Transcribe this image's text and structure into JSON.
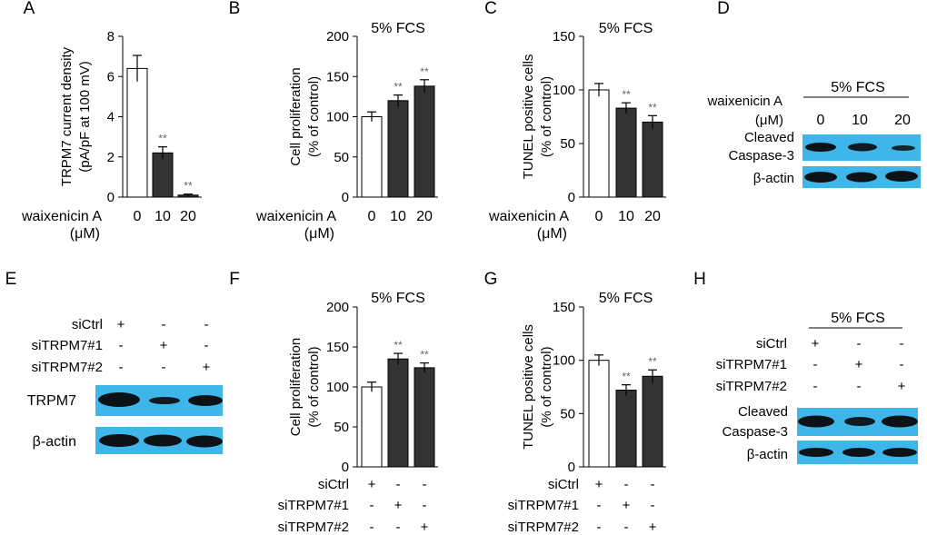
{
  "panels": {
    "A": {
      "label": "A"
    },
    "B": {
      "label": "B",
      "condition": "5% FCS"
    },
    "C": {
      "label": "C",
      "condition": "5% FCS"
    },
    "D": {
      "label": "D",
      "condition": "5% FCS",
      "treatment_label": "waixenicin A",
      "unit_label": "(μM)",
      "doses": [
        "0",
        "10",
        "20"
      ],
      "bands": [
        {
          "label": "Cleaved\nCaspase-3"
        },
        {
          "label": "β-actin"
        }
      ]
    },
    "E": {
      "label": "E",
      "rows": [
        {
          "name": "siCtrl",
          "marks": [
            "+",
            "-",
            "-"
          ]
        },
        {
          "name": "siTRPM7#1",
          "marks": [
            "-",
            "+",
            "-"
          ]
        },
        {
          "name": "siTRPM7#2",
          "marks": [
            "-",
            "-",
            "+"
          ]
        }
      ],
      "bands": [
        {
          "label": "TRPM7"
        },
        {
          "label": "β-actin"
        }
      ]
    },
    "F": {
      "label": "F",
      "condition": "5% FCS"
    },
    "G": {
      "label": "G",
      "condition": "5% FCS"
    },
    "H": {
      "label": "H",
      "condition": "5% FCS",
      "rows": [
        {
          "name": "siCtrl",
          "marks": [
            "+",
            "-",
            "-"
          ]
        },
        {
          "name": "siTRPM7#1",
          "marks": [
            "-",
            "+",
            "-"
          ]
        },
        {
          "name": "siTRPM7#2",
          "marks": [
            "-",
            "-",
            "+"
          ]
        }
      ],
      "bands": [
        {
          "label": "Cleaved\nCaspase-3"
        },
        {
          "label": "β-actin"
        }
      ]
    }
  },
  "colors": {
    "control_fill": "#ffffff",
    "treated_fill": "#333333",
    "blot_bg": "#3fb6ea",
    "band": "#0a0a0a",
    "significance": "#666666"
  },
  "chart_data": [
    {
      "panel": "A",
      "type": "bar",
      "ylabel": "TRPM7 current density\n(pA/pF at 100 mV)",
      "ylim": [
        0,
        8
      ],
      "yticks": [
        0,
        2,
        4,
        6,
        8
      ],
      "categories": [
        "0",
        "10",
        "20"
      ],
      "category_title": "waixenicin A",
      "category_unit": "(μM)",
      "values": [
        6.4,
        2.2,
        0.1
      ],
      "errors": [
        0.65,
        0.3,
        0.05
      ],
      "significance": [
        "",
        "**",
        "**"
      ]
    },
    {
      "panel": "B",
      "type": "bar",
      "title": "5% FCS",
      "ylabel": "Cell proliferation\n(% of control)",
      "ylim": [
        0,
        200
      ],
      "yticks": [
        0,
        50,
        100,
        150,
        200
      ],
      "categories": [
        "0",
        "10",
        "20"
      ],
      "category_title": "waixenicin A",
      "category_unit": "(μM)",
      "values": [
        100,
        120,
        138
      ],
      "errors": [
        6,
        7,
        8
      ],
      "significance": [
        "",
        "**",
        "**"
      ]
    },
    {
      "panel": "C",
      "type": "bar",
      "title": "5% FCS",
      "ylabel": "TUNEL positive cells\n(% of control)",
      "ylim": [
        0,
        150
      ],
      "yticks": [
        0,
        50,
        100,
        150
      ],
      "categories": [
        "0",
        "10",
        "20"
      ],
      "category_title": "waixenicin A",
      "category_unit": "(μM)",
      "values": [
        100,
        83,
        70
      ],
      "errors": [
        6,
        5,
        6
      ],
      "significance": [
        "",
        "**",
        "**"
      ]
    },
    {
      "panel": "F",
      "type": "bar",
      "title": "5% FCS",
      "ylabel": "Cell proliferation\n(% of control)",
      "ylim": [
        0,
        200
      ],
      "yticks": [
        0,
        50,
        100,
        150,
        200
      ],
      "categories": [
        "1",
        "2",
        "3"
      ],
      "conditions": [
        {
          "name": "siCtrl",
          "marks": [
            "+",
            "-",
            "-"
          ]
        },
        {
          "name": "siTRPM7#1",
          "marks": [
            "-",
            "+",
            "-"
          ]
        },
        {
          "name": "siTRPM7#2",
          "marks": [
            "-",
            "-",
            "+"
          ]
        }
      ],
      "values": [
        100,
        135,
        124
      ],
      "errors": [
        6,
        7,
        6
      ],
      "significance": [
        "",
        "**",
        "**"
      ]
    },
    {
      "panel": "G",
      "type": "bar",
      "title": "5% FCS",
      "ylabel": "TUNEL positive cells\n(% of control)",
      "ylim": [
        0,
        150
      ],
      "yticks": [
        0,
        50,
        100,
        150
      ],
      "categories": [
        "1",
        "2",
        "3"
      ],
      "conditions": [
        {
          "name": "siCtrl",
          "marks": [
            "+",
            "-",
            "-"
          ]
        },
        {
          "name": "siTRPM7#1",
          "marks": [
            "-",
            "+",
            "-"
          ]
        },
        {
          "name": "siTRPM7#2",
          "marks": [
            "-",
            "-",
            "+"
          ]
        }
      ],
      "values": [
        100,
        72,
        85
      ],
      "errors": [
        5,
        5,
        6
      ],
      "significance": [
        "",
        "**",
        "**"
      ]
    }
  ]
}
